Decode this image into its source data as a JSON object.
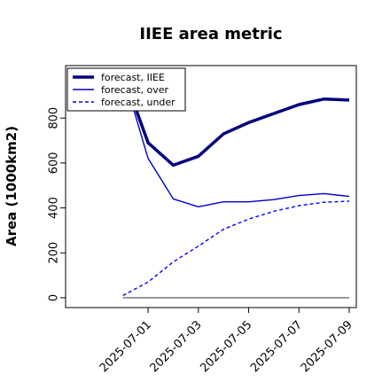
{
  "chart_data": {
    "type": "line",
    "title": "IIEE area metric",
    "ylabel": "Area (1000km2)",
    "xlabel": "",
    "ylim": [
      -20,
      1010
    ],
    "yticks": [
      0,
      200,
      400,
      600,
      800
    ],
    "ytick_labels": [
      "0",
      "200",
      "400",
      "600",
      "800"
    ],
    "x_dates": [
      "2025-06-30",
      "2025-07-01",
      "2025-07-02",
      "2025-07-03",
      "2025-07-04",
      "2025-07-05",
      "2025-07-06",
      "2025-07-07",
      "2025-07-08",
      "2025-07-09"
    ],
    "xticks": [
      {
        "date": "2025-07-01",
        "label": "2025-07-01",
        "color": "#228B22"
      },
      {
        "date": "2025-07-03",
        "label": "2025-07-03",
        "color": "#000000"
      },
      {
        "date": "2025-07-05",
        "label": "2025-07-05",
        "color": "#000000"
      },
      {
        "date": "2025-07-07",
        "label": "2025-07-07",
        "color": "#000000"
      },
      {
        "date": "2025-07-09",
        "label": "2025-07-09",
        "color": "#000000"
      }
    ],
    "xlim": [
      "2025-06-28",
      "2025-07-09"
    ],
    "baseline": 0,
    "grid": false,
    "legend_position": "top-left",
    "series": [
      {
        "name": "forecast, IIEE",
        "color": "#00007F",
        "style": "solid",
        "weight": "thick",
        "values": [
          1000,
          690,
          590,
          630,
          730,
          780,
          820,
          860,
          885,
          880
        ]
      },
      {
        "name": "forecast, over",
        "color": "#0000CD",
        "style": "solid",
        "weight": "thin",
        "values": [
          1000,
          620,
          440,
          405,
          427,
          427,
          437,
          455,
          464,
          451
        ]
      },
      {
        "name": "forecast, under",
        "color": "#0000FF",
        "style": "dashed",
        "weight": "thin",
        "values": [
          10,
          70,
          160,
          230,
          305,
          350,
          385,
          410,
          425,
          430
        ]
      }
    ]
  }
}
